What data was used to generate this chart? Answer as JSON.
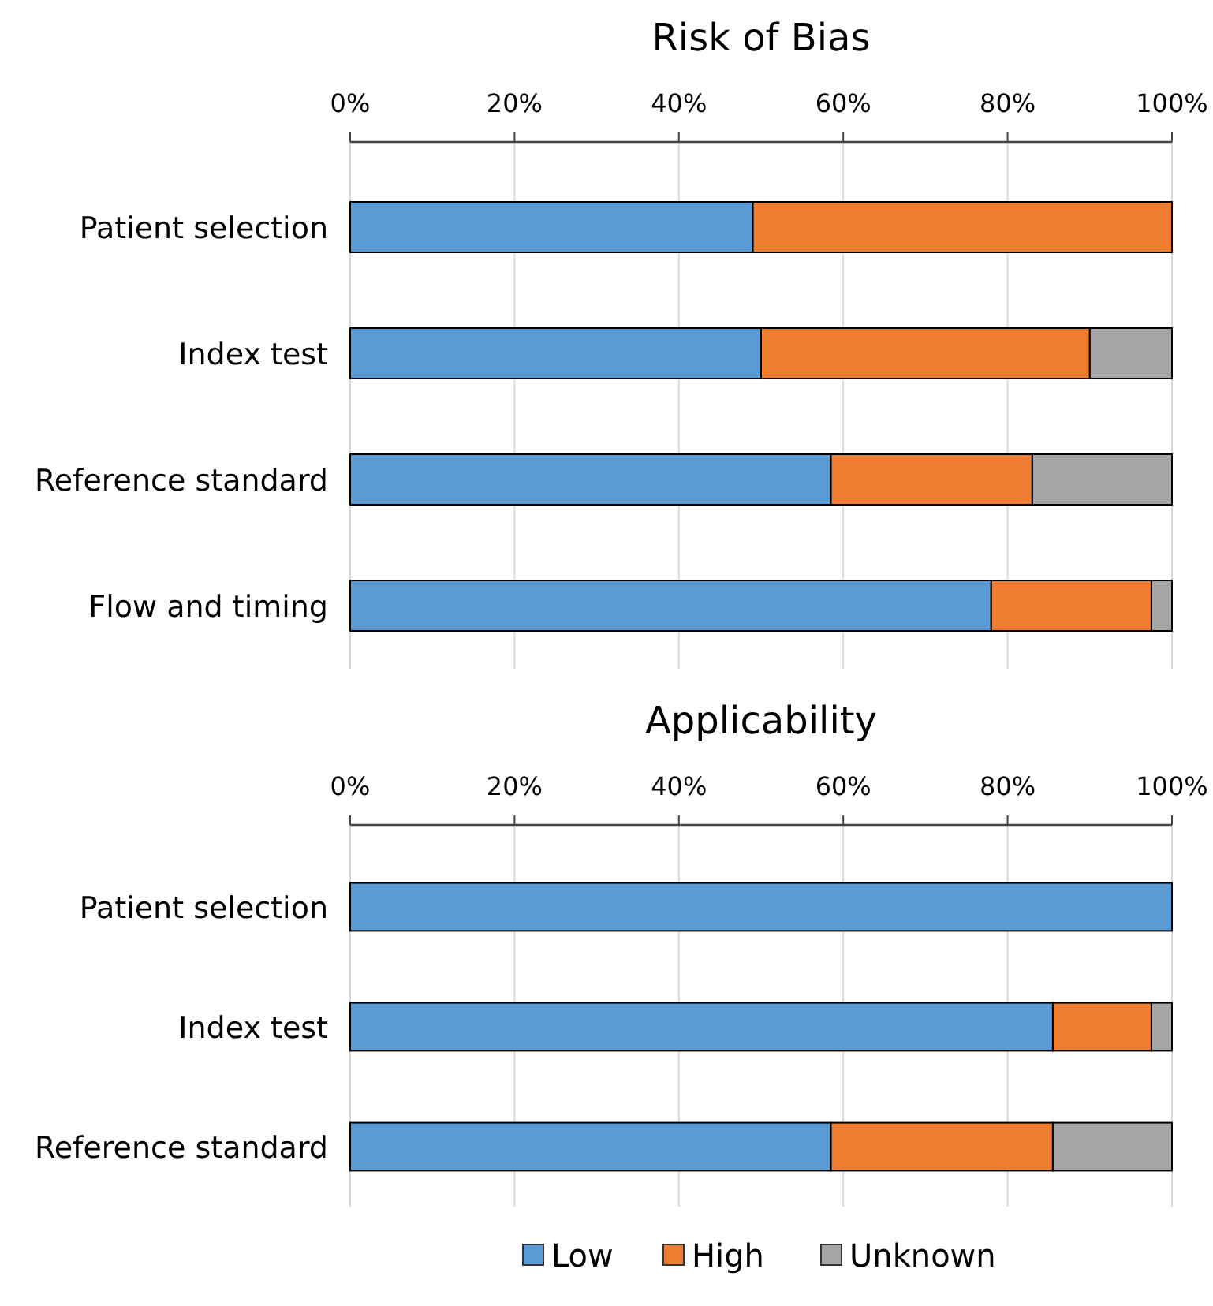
{
  "chart_data": [
    {
      "type": "bar",
      "title": "Risk of Bias",
      "orientation": "horizontal",
      "stacked": true,
      "categories": [
        "Patient selection",
        "Index test",
        "Reference standard",
        "Flow and timing"
      ],
      "series": [
        {
          "color": "#5b9bd5",
          "values": [
            49,
            50,
            58.5,
            78
          ]
        },
        {
          "color": "#ed7d31",
          "values": [
            51,
            40,
            24.5,
            19.5
          ]
        },
        {
          "color": "#a5a5a5",
          "values": [
            0,
            10,
            17,
            2.5
          ]
        }
      ],
      "xlim": [
        0,
        100
      ],
      "xticks": [
        {
          "value": 0,
          "label": "0%"
        },
        {
          "value": 20,
          "label": "20%"
        },
        {
          "value": 40,
          "label": "40%"
        },
        {
          "value": 60,
          "label": "60%"
        },
        {
          "value": 80,
          "label": "80%"
        },
        {
          "value": 100,
          "label": "100%"
        }
      ],
      "grid": "x",
      "legend": false
    },
    {
      "type": "bar",
      "title": "Applicability",
      "orientation": "horizontal",
      "stacked": true,
      "categories": [
        "Patient selection",
        "Index test",
        "Reference standard"
      ],
      "series": [
        {
          "name": "Low",
          "color": "#5b9bd5",
          "values": [
            100,
            85.5,
            58.5
          ]
        },
        {
          "name": "High",
          "color": "#ed7d31",
          "values": [
            0,
            12,
            27
          ]
        },
        {
          "name": "Unknown",
          "color": "#a5a5a5",
          "values": [
            0,
            2.5,
            14.5
          ]
        }
      ],
      "xlim": [
        0,
        100
      ],
      "xticks": [
        {
          "value": 0,
          "label": "0%"
        },
        {
          "value": 20,
          "label": "20%"
        },
        {
          "value": 40,
          "label": "40%"
        },
        {
          "value": 60,
          "label": "60%"
        },
        {
          "value": 80,
          "label": "80%"
        },
        {
          "value": 100,
          "label": "100%"
        }
      ],
      "grid": "x",
      "legend": "bottom"
    }
  ]
}
